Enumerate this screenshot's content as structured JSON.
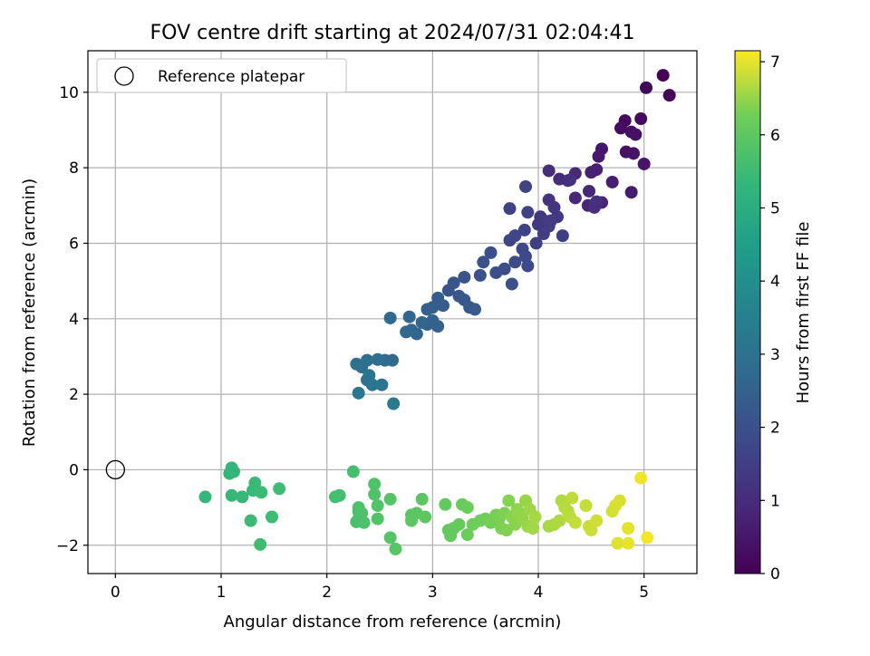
{
  "chart_data": {
    "type": "scatter",
    "title": "FOV centre drift starting at 2024/07/31 02:04:41",
    "xlabel": "Angular distance from reference (arcmin)",
    "ylabel": "Rotation from reference (arcmin)",
    "colorbar_label": "Hours from first FF file",
    "xlim": [
      -0.26,
      5.5
    ],
    "ylim": [
      -2.75,
      11.1
    ],
    "x_ticks": [
      0,
      1,
      2,
      3,
      4,
      5
    ],
    "y_ticks": [
      -2,
      0,
      2,
      4,
      6,
      8,
      10
    ],
    "colorbar_range": [
      0,
      7.15
    ],
    "colorbar_ticks": [
      0,
      1,
      2,
      3,
      4,
      5,
      6,
      7
    ],
    "colormap": "viridis",
    "grid": true,
    "legend": {
      "placement": "top-left",
      "entries": [
        {
          "label": "Reference platepar",
          "marker": "open-circle"
        }
      ]
    },
    "reference_point": {
      "x": 0,
      "y": 0
    },
    "points": [
      [
        5.18,
        10.45,
        0.05
      ],
      [
        5.24,
        9.92,
        0.08
      ],
      [
        5.02,
        10.12,
        0.1
      ],
      [
        4.82,
        9.25,
        0.2
      ],
      [
        4.97,
        9.3,
        0.25
      ],
      [
        4.78,
        9.05,
        0.3
      ],
      [
        4.88,
        8.95,
        0.33
      ],
      [
        4.92,
        8.88,
        0.36
      ],
      [
        4.83,
        8.42,
        0.4
      ],
      [
        4.9,
        8.38,
        0.42
      ],
      [
        5.0,
        8.1,
        0.46
      ],
      [
        4.6,
        8.5,
        0.5
      ],
      [
        4.57,
        8.3,
        0.55
      ],
      [
        4.88,
        7.35,
        0.6
      ],
      [
        4.7,
        7.62,
        0.65
      ],
      [
        4.55,
        7.95,
        0.7
      ],
      [
        4.5,
        7.88,
        0.72
      ],
      [
        4.6,
        7.08,
        0.8
      ],
      [
        4.47,
        7.0,
        0.85
      ],
      [
        4.35,
        7.2,
        0.9
      ],
      [
        4.48,
        7.38,
        0.93
      ],
      [
        4.35,
        7.85,
        0.97
      ],
      [
        4.28,
        7.66,
        1.0
      ],
      [
        4.2,
        7.7,
        1.03
      ],
      [
        4.1,
        7.92,
        1.06
      ],
      [
        4.53,
        6.95,
        1.1
      ],
      [
        4.55,
        7.1,
        1.12
      ],
      [
        4.3,
        7.68,
        1.15
      ],
      [
        4.1,
        7.15,
        1.2
      ],
      [
        4.15,
        6.95,
        1.25
      ],
      [
        4.18,
        6.7,
        1.3
      ],
      [
        4.02,
        6.7,
        1.33
      ],
      [
        4.0,
        6.5,
        1.36
      ],
      [
        4.05,
        6.6,
        1.39
      ],
      [
        4.1,
        6.45,
        1.42
      ],
      [
        4.12,
        6.6,
        1.45
      ],
      [
        4.23,
        6.2,
        1.48
      ],
      [
        4.05,
        6.25,
        1.5
      ],
      [
        3.98,
        6.0,
        1.53
      ],
      [
        3.9,
        6.82,
        1.56
      ],
      [
        3.73,
        6.92,
        1.6
      ],
      [
        3.88,
        7.5,
        1.63
      ],
      [
        3.87,
        6.35,
        1.66
      ],
      [
        3.73,
        6.08,
        1.7
      ],
      [
        3.78,
        6.2,
        1.73
      ],
      [
        3.85,
        5.85,
        1.76
      ],
      [
        3.88,
        5.65,
        1.8
      ],
      [
        3.9,
        5.4,
        1.83
      ],
      [
        3.78,
        5.5,
        1.86
      ],
      [
        3.68,
        5.32,
        1.9
      ],
      [
        3.6,
        5.22,
        1.93
      ],
      [
        3.75,
        4.92,
        1.96
      ],
      [
        3.55,
        5.75,
        2.0
      ],
      [
        3.48,
        5.5,
        2.03
      ],
      [
        3.45,
        5.15,
        2.06
      ],
      [
        3.3,
        5.1,
        2.1
      ],
      [
        3.2,
        4.95,
        2.13
      ],
      [
        3.15,
        4.75,
        2.16
      ],
      [
        3.25,
        4.6,
        2.2
      ],
      [
        3.3,
        4.5,
        2.23
      ],
      [
        3.35,
        4.3,
        2.26
      ],
      [
        3.4,
        4.25,
        2.3
      ],
      [
        3.05,
        4.55,
        2.33
      ],
      [
        3.1,
        4.35,
        2.36
      ],
      [
        3.0,
        4.3,
        2.4
      ],
      [
        2.95,
        4.25,
        2.43
      ],
      [
        3.0,
        3.95,
        2.46
      ],
      [
        3.05,
        3.8,
        2.5
      ],
      [
        2.95,
        3.85,
        2.53
      ],
      [
        2.9,
        3.9,
        2.56
      ],
      [
        2.85,
        3.6,
        2.6
      ],
      [
        2.8,
        3.7,
        2.63
      ],
      [
        2.78,
        4.05,
        2.66
      ],
      [
        2.75,
        3.65,
        2.7
      ],
      [
        2.6,
        4.02,
        2.73
      ],
      [
        2.62,
        2.9,
        2.8
      ],
      [
        2.55,
        2.9,
        2.85
      ],
      [
        2.48,
        2.92,
        2.9
      ],
      [
        2.38,
        2.9,
        2.95
      ],
      [
        2.33,
        2.72,
        3.0
      ],
      [
        2.28,
        2.8,
        3.03
      ],
      [
        2.4,
        2.5,
        3.06
      ],
      [
        2.38,
        2.38,
        3.1
      ],
      [
        2.43,
        2.25,
        3.13
      ],
      [
        2.52,
        2.25,
        3.16
      ],
      [
        2.3,
        2.03,
        3.2
      ],
      [
        2.63,
        1.75,
        3.25
      ],
      [
        1.1,
        0.05,
        5.3
      ],
      [
        1.12,
        -0.05,
        5.32
      ],
      [
        1.08,
        -0.1,
        5.34
      ],
      [
        0.85,
        -0.72,
        5.36
      ],
      [
        1.1,
        -0.68,
        5.38
      ],
      [
        1.2,
        -0.72,
        5.4
      ],
      [
        1.3,
        -0.55,
        5.42
      ],
      [
        1.32,
        -0.35,
        5.44
      ],
      [
        1.38,
        -0.6,
        5.46
      ],
      [
        1.28,
        -1.35,
        5.48
      ],
      [
        1.48,
        -1.25,
        5.5
      ],
      [
        1.55,
        -0.5,
        5.52
      ],
      [
        1.37,
        -1.98,
        5.54
      ],
      [
        2.08,
        -0.72,
        5.6
      ],
      [
        2.12,
        -0.68,
        5.62
      ],
      [
        2.25,
        -0.05,
        5.64
      ],
      [
        2.3,
        -1.1,
        5.66
      ],
      [
        2.28,
        -1.38,
        5.68
      ],
      [
        2.3,
        -1.3,
        5.7
      ],
      [
        2.35,
        -1.4,
        5.72
      ],
      [
        2.3,
        -1.0,
        5.74
      ],
      [
        2.33,
        -1.15,
        5.76
      ],
      [
        2.45,
        -0.38,
        5.78
      ],
      [
        2.45,
        -0.65,
        5.8
      ],
      [
        2.48,
        -0.95,
        5.82
      ],
      [
        2.48,
        -1.3,
        5.84
      ],
      [
        2.6,
        -0.78,
        5.86
      ],
      [
        2.6,
        -1.8,
        5.88
      ],
      [
        2.65,
        -2.1,
        5.9
      ],
      [
        2.8,
        -1.2,
        5.92
      ],
      [
        2.8,
        -1.35,
        5.94
      ],
      [
        2.85,
        -1.15,
        5.96
      ],
      [
        2.9,
        -0.78,
        5.98
      ],
      [
        2.93,
        -1.25,
        6.0
      ],
      [
        3.12,
        -0.92,
        6.05
      ],
      [
        3.15,
        -1.6,
        6.08
      ],
      [
        3.17,
        -1.75,
        6.1
      ],
      [
        3.2,
        -1.55,
        6.12
      ],
      [
        3.25,
        -1.45,
        6.14
      ],
      [
        3.28,
        -0.92,
        6.16
      ],
      [
        3.33,
        -1.0,
        6.18
      ],
      [
        3.33,
        -1.72,
        6.2
      ],
      [
        3.38,
        -1.45,
        6.22
      ],
      [
        3.45,
        -1.35,
        6.24
      ],
      [
        3.5,
        -1.3,
        6.26
      ],
      [
        3.55,
        -1.4,
        6.28
      ],
      [
        3.6,
        -1.2,
        6.3
      ],
      [
        3.63,
        -1.3,
        6.32
      ],
      [
        3.65,
        -1.55,
        6.34
      ],
      [
        3.68,
        -1.15,
        6.36
      ],
      [
        3.7,
        -1.6,
        6.38
      ],
      [
        3.72,
        -0.82,
        6.4
      ],
      [
        3.75,
        -1.25,
        6.42
      ],
      [
        3.78,
        -1.45,
        6.44
      ],
      [
        3.8,
        -1.05,
        6.46
      ],
      [
        3.82,
        -1.15,
        6.48
      ],
      [
        3.85,
        -1.3,
        6.5
      ],
      [
        3.88,
        -0.82,
        6.52
      ],
      [
        3.9,
        -1.5,
        6.54
      ],
      [
        3.92,
        -1.05,
        6.56
      ],
      [
        3.95,
        -1.55,
        6.58
      ],
      [
        3.97,
        -1.25,
        6.6
      ],
      [
        4.1,
        -1.5,
        6.62
      ],
      [
        4.15,
        -1.45,
        6.64
      ],
      [
        4.2,
        -1.35,
        6.66
      ],
      [
        4.22,
        -0.82,
        6.68
      ],
      [
        4.25,
        -1.0,
        6.7
      ],
      [
        4.28,
        -1.1,
        6.72
      ],
      [
        4.3,
        -1.25,
        6.74
      ],
      [
        4.32,
        -0.75,
        6.76
      ],
      [
        4.35,
        -1.4,
        6.78
      ],
      [
        4.45,
        -0.95,
        6.8
      ],
      [
        4.48,
        -1.5,
        6.82
      ],
      [
        4.5,
        -1.6,
        6.84
      ],
      [
        4.55,
        -1.35,
        6.86
      ],
      [
        4.7,
        -1.1,
        6.88
      ],
      [
        4.73,
        -0.95,
        6.9
      ],
      [
        4.77,
        -0.82,
        6.92
      ],
      [
        4.75,
        -1.95,
        6.95
      ],
      [
        4.85,
        -1.55,
        6.98
      ],
      [
        4.85,
        -1.95,
        7.0
      ],
      [
        4.97,
        -0.22,
        7.05
      ],
      [
        5.03,
        -1.8,
        7.1
      ]
    ]
  }
}
